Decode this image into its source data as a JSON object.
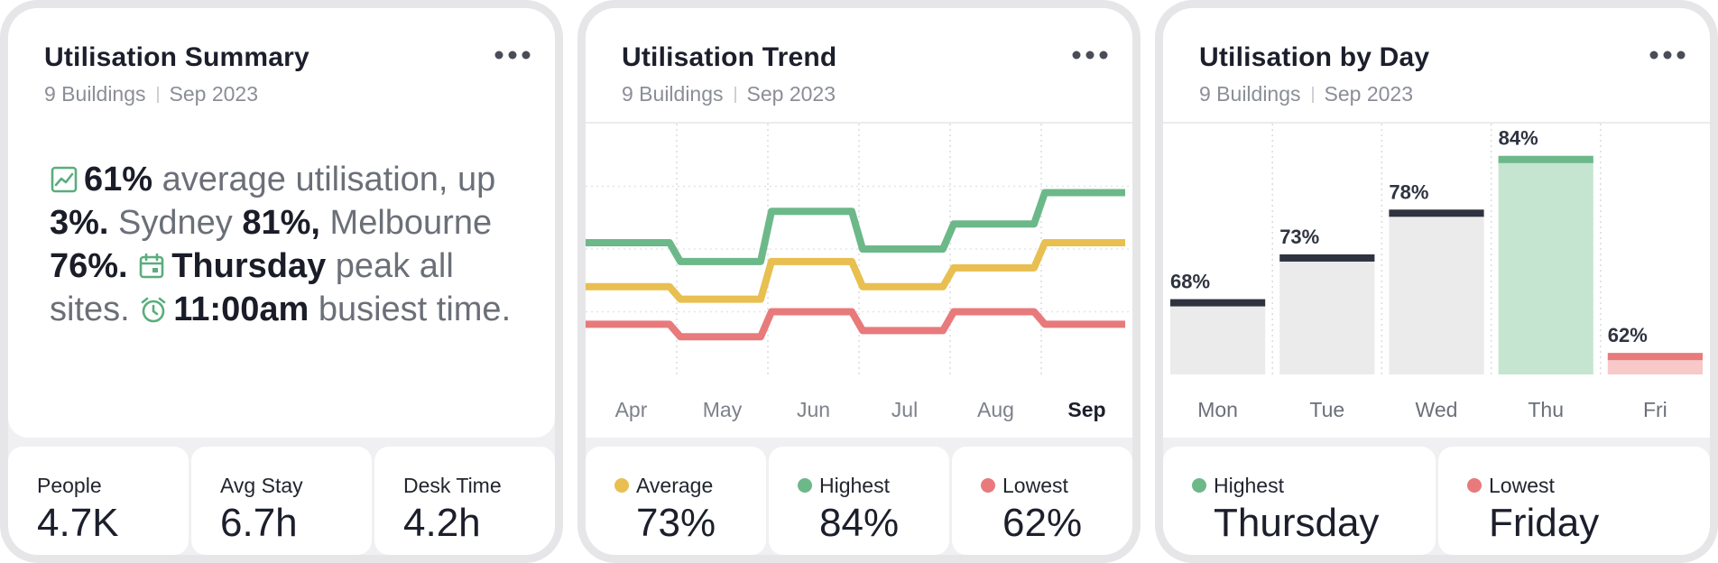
{
  "colors": {
    "average": "#e8bf50",
    "highest": "#6cb889",
    "lowest": "#e87a7c",
    "bar": "#ebebeb",
    "bar_top": "#2f3340"
  },
  "summary": {
    "title": "Utilisation Summary",
    "subtitle_a": "9 Buildings",
    "subtitle_b": "Sep 2023",
    "t1": "61%",
    "t2": " average utilisation, up ",
    "t3": "3%.",
    "t4": " Sydney ",
    "t5": "81%,",
    "t6": " Melbourne ",
    "t7": "76%.",
    "t8": "Thursday",
    "t9": " peak all sites. ",
    "t10": "11:00am",
    "t11": " busiest time.",
    "stats": [
      {
        "label": "People",
        "value": "4.7K"
      },
      {
        "label": "Avg Stay",
        "value": "6.7h"
      },
      {
        "label": "Desk Time",
        "value": "4.2h"
      }
    ]
  },
  "trend": {
    "title": "Utilisation Trend",
    "subtitle_a": "9 Buildings",
    "subtitle_b": "Sep 2023",
    "stats": [
      {
        "label": "Average",
        "value": "73%"
      },
      {
        "label": "Highest",
        "value": "84%"
      },
      {
        "label": "Lowest",
        "value": "62%"
      }
    ]
  },
  "byday": {
    "title": "Utilisation by Day",
    "subtitle_a": "9 Buildings",
    "subtitle_b": "Sep 2023",
    "stats": [
      {
        "label": "Highest",
        "value": "Thursday"
      },
      {
        "label": "Lowest",
        "value": "Friday"
      }
    ]
  },
  "chart_data": [
    {
      "type": "line",
      "title": "Utilisation Trend",
      "categories": [
        "Apr",
        "May",
        "Jun",
        "Jul",
        "Aug",
        "Sep"
      ],
      "highlight": "Sep",
      "ylim": [
        55,
        95
      ],
      "series": [
        {
          "name": "Highest",
          "values": [
            76,
            73,
            81,
            75,
            79,
            84
          ]
        },
        {
          "name": "Average",
          "values": [
            69,
            67,
            73,
            69,
            72,
            76
          ]
        },
        {
          "name": "Lowest",
          "values": [
            63,
            61,
            65,
            62,
            65,
            63
          ]
        }
      ]
    },
    {
      "type": "bar",
      "title": "Utilisation by Day",
      "categories": [
        "Mon",
        "Tue",
        "Wed",
        "Thu",
        "Fri"
      ],
      "values": [
        68,
        73,
        78,
        84,
        62
      ],
      "value_labels": [
        "68%",
        "73%",
        "78%",
        "84%",
        "62%"
      ],
      "highest": "Thu",
      "lowest": "Fri",
      "ylim": [
        60,
        88
      ]
    }
  ]
}
